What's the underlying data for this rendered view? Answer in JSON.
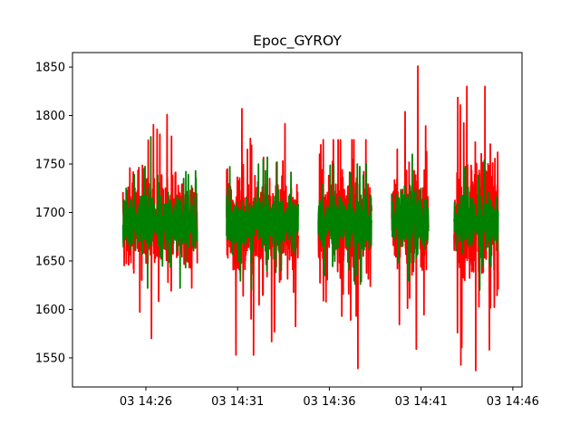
{
  "chart_data": {
    "type": "line",
    "title": "Epoc_GYROY",
    "xlabel": "",
    "ylabel": "",
    "x_tick_labels": [
      "03 14:26",
      "03 14:31",
      "03 14:36",
      "03 14:41",
      "03 14:46"
    ],
    "x_tick_minutes": [
      26,
      31,
      36,
      41,
      46
    ],
    "xlim_minutes": [
      22.0,
      46.5
    ],
    "y_ticks": [
      1550,
      1600,
      1650,
      1700,
      1750,
      1800,
      1850
    ],
    "ylim": [
      1520,
      1865
    ],
    "grid": false,
    "legend": "none",
    "series": [
      {
        "color": "#ff0000",
        "segments": [
          {
            "start_min": 24.75,
            "end_min": 28.8,
            "center": 1690,
            "spread": 30,
            "min": 1570,
            "max": 1801
          },
          {
            "start_min": 30.4,
            "end_min": 34.3,
            "center": 1690,
            "spread": 32,
            "min": 1553,
            "max": 1807
          },
          {
            "start_min": 35.4,
            "end_min": 38.3,
            "center": 1690,
            "spread": 35,
            "min": 1539,
            "max": 1775
          },
          {
            "start_min": 39.4,
            "end_min": 41.4,
            "center": 1690,
            "spread": 35,
            "min": 1559,
            "max": 1851
          },
          {
            "start_min": 42.8,
            "end_min": 45.2,
            "center": 1690,
            "spread": 38,
            "min": 1537,
            "max": 1830
          }
        ]
      },
      {
        "color": "#008000",
        "segments": [
          {
            "start_min": 24.75,
            "end_min": 28.8,
            "center": 1690,
            "spread": 18,
            "min": 1622,
            "max": 1778
          },
          {
            "start_min": 30.4,
            "end_min": 34.3,
            "center": 1690,
            "spread": 18,
            "min": 1620,
            "max": 1757
          },
          {
            "start_min": 35.4,
            "end_min": 38.3,
            "center": 1690,
            "spread": 18,
            "min": 1626,
            "max": 1750
          },
          {
            "start_min": 39.4,
            "end_min": 41.4,
            "center": 1690,
            "spread": 18,
            "min": 1630,
            "max": 1760
          },
          {
            "start_min": 42.8,
            "end_min": 45.2,
            "center": 1690,
            "spread": 18,
            "min": 1620,
            "max": 1754
          }
        ]
      }
    ]
  }
}
